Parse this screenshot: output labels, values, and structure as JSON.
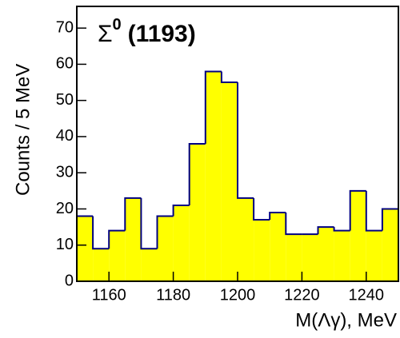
{
  "chart_data": {
    "type": "histogram",
    "title_symbol": "Σ",
    "title_superscript": "0",
    "title_rest": "(1193)",
    "x_label": "M(Λγ), MeV",
    "y_label": "Counts / 5 MeV",
    "bins": [
      1150,
      1155,
      1160,
      1165,
      1170,
      1175,
      1180,
      1185,
      1190,
      1195,
      1200,
      1205,
      1210,
      1215,
      1220,
      1225,
      1230,
      1235,
      1240,
      1245,
      1250
    ],
    "values": [
      18,
      9,
      14,
      23,
      9,
      18,
      21,
      38,
      58,
      55,
      23,
      17,
      19,
      13,
      13,
      15,
      14,
      25,
      14,
      20
    ],
    "color": "#ffff00",
    "edge_color": "#000080",
    "xlim": [
      1150,
      1250
    ],
    "ylim": [
      0,
      76
    ],
    "xticks": [
      1160,
      1180,
      1200,
      1220,
      1240
    ],
    "yticks": [
      0,
      10,
      20,
      30,
      40,
      50,
      60,
      70
    ]
  }
}
